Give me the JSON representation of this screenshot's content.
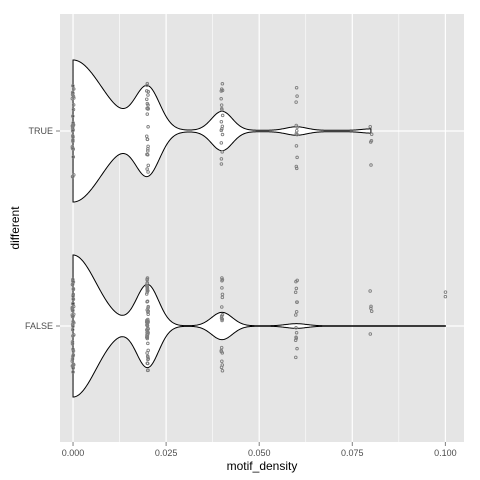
{
  "chart_data": {
    "type": "violin",
    "orientation": "horizontal",
    "xlabel": "motif_density",
    "ylabel": "different",
    "xlim": [
      -0.0035,
      0.105
    ],
    "x_ticks": [
      0.0,
      0.025,
      0.05,
      0.075,
      0.1
    ],
    "x_tick_labels": [
      "0.000",
      "0.025",
      "0.050",
      "0.075",
      "0.100"
    ],
    "categories": [
      "TRUE",
      "FALSE"
    ],
    "grid": true,
    "background": "#e5e5e5",
    "grid_color": "#ffffff",
    "outline_color": "#000000",
    "violin_fill": "#ffffff",
    "point_color": "#7f7f7f",
    "groups": [
      {
        "category": "TRUE",
        "density_peaks": [
          {
            "x": 0.0,
            "height": 1.0,
            "width": 0.0078
          },
          {
            "x": 0.02,
            "height": 0.6,
            "width": 0.0033
          },
          {
            "x": 0.04,
            "height": 0.27,
            "width": 0.0028
          },
          {
            "x": 0.06,
            "height": 0.05,
            "width": 0.0028
          },
          {
            "x": 0.08,
            "height": 0.02,
            "width": 0.0025
          }
        ],
        "density_floor": 0.01,
        "x_range": [
          0.0,
          0.08
        ],
        "points": [
          {
            "x": 0.0,
            "count": 34
          },
          {
            "x": 0.02,
            "count": 24
          },
          {
            "x": 0.04,
            "count": 18
          },
          {
            "x": 0.06,
            "count": 12
          },
          {
            "x": 0.08,
            "count": 5
          }
        ]
      },
      {
        "category": "FALSE",
        "density_peaks": [
          {
            "x": 0.0,
            "height": 1.0,
            "width": 0.0062
          },
          {
            "x": 0.02,
            "height": 0.58,
            "width": 0.003
          },
          {
            "x": 0.04,
            "height": 0.19,
            "width": 0.0028
          },
          {
            "x": 0.06,
            "height": 0.03,
            "width": 0.0028
          }
        ],
        "density_floor": 0.003,
        "x_range": [
          0.0,
          0.1
        ],
        "points": [
          {
            "x": 0.0,
            "count": 44
          },
          {
            "x": 0.02,
            "count": 60
          },
          {
            "x": 0.04,
            "count": 20
          },
          {
            "x": 0.06,
            "count": 15
          },
          {
            "x": 0.08,
            "count": 5
          },
          {
            "x": 0.1,
            "count": 2
          }
        ]
      }
    ]
  }
}
